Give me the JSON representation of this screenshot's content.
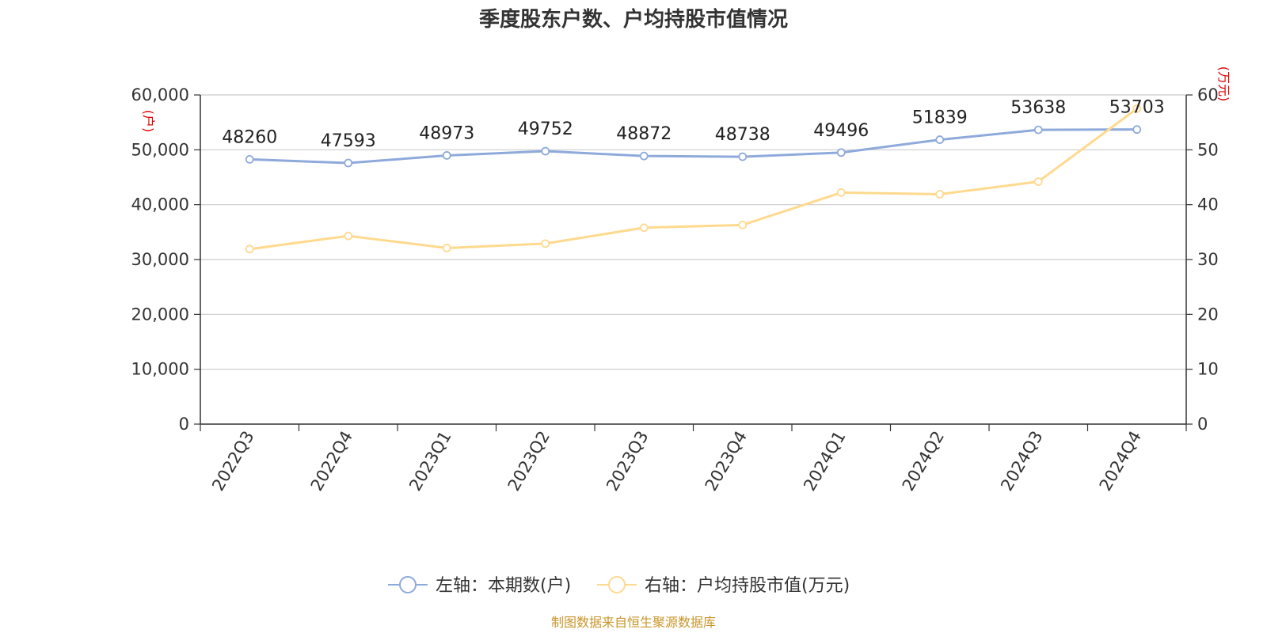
{
  "chart_data": {
    "type": "line",
    "title": "季度股东户数、户均持股市值情况",
    "categories": [
      "2022Q3",
      "2022Q4",
      "2023Q1",
      "2023Q2",
      "2023Q3",
      "2023Q4",
      "2024Q1",
      "2024Q2",
      "2024Q3",
      "2024Q4"
    ],
    "left_axis": {
      "unit": "(户)",
      "ylim": [
        0,
        60000
      ],
      "ticks": [
        0,
        10000,
        20000,
        30000,
        40000,
        50000,
        60000
      ],
      "tick_labels": [
        "0",
        "10,000",
        "20,000",
        "30,000",
        "40,000",
        "50,000",
        "60,000"
      ]
    },
    "right_axis": {
      "unit": "(万元)",
      "ylim": [
        0,
        60
      ],
      "ticks": [
        0,
        10,
        20,
        30,
        40,
        50,
        60
      ],
      "tick_labels": [
        "0",
        "10",
        "20",
        "30",
        "40",
        "50",
        "60"
      ]
    },
    "series": [
      {
        "name": "左轴：本期数(户)",
        "axis": "left",
        "color": "#8eaadb",
        "values": [
          48260,
          47593,
          48973,
          49752,
          48872,
          48738,
          49496,
          51839,
          53638,
          53703
        ],
        "labels": [
          "48260",
          "47593",
          "48973",
          "49752",
          "48872",
          "48738",
          "49496",
          "51839",
          "53638",
          "53703"
        ]
      },
      {
        "name": "右轴：户均持股市值(万元)",
        "axis": "right",
        "color": "#ffd98e",
        "values": [
          31.9,
          34.3,
          32.1,
          32.9,
          35.8,
          36.3,
          42.2,
          41.9,
          44.2,
          57.5
        ]
      }
    ],
    "grid": true,
    "legend": "bottom-center",
    "source": "制图数据来自恒生聚源数据库"
  }
}
